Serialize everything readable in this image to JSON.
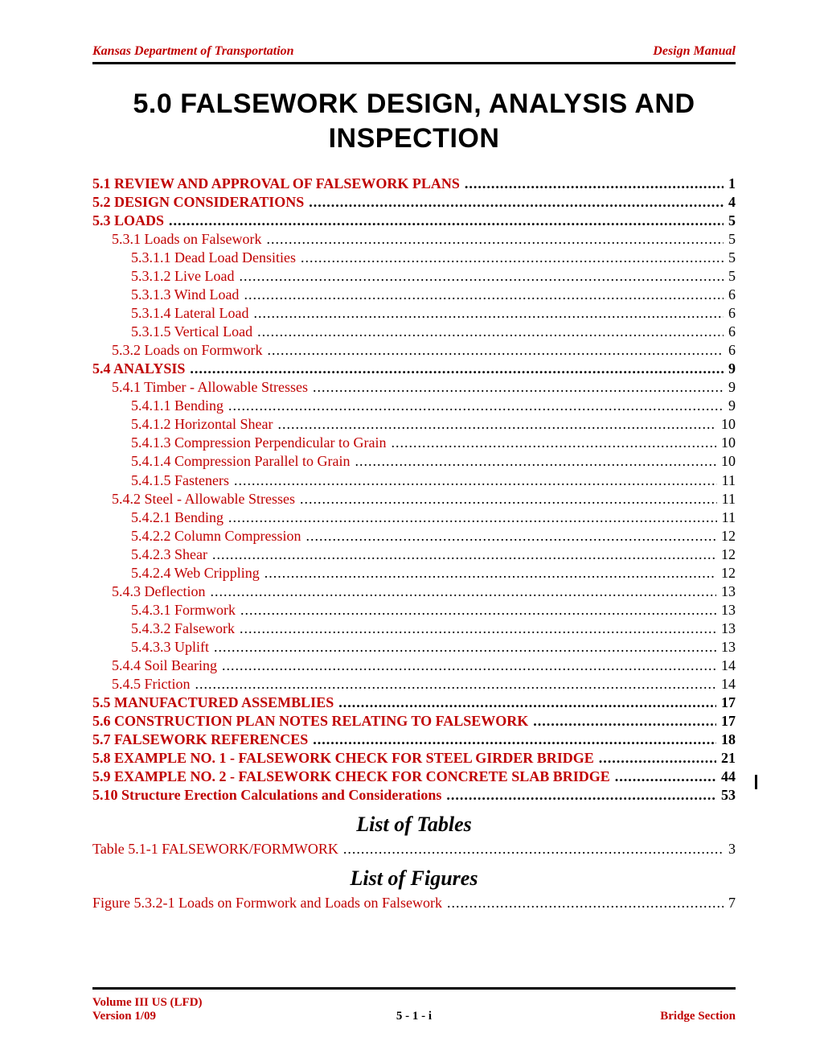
{
  "header": {
    "left": "Kansas Department of Transportation",
    "right": "Design Manual",
    "left_color": "#c00000",
    "right_color": "#c00000"
  },
  "title": "5.0 FALSEWORK DESIGN, ANALYSIS AND INSPECTION",
  "toc": [
    {
      "level": 0,
      "title": "5.1 REVIEW AND APPROVAL OF FALSEWORK PLANS",
      "page": "1"
    },
    {
      "level": 0,
      "title": "5.2 DESIGN CONSIDERATIONS",
      "page": "4"
    },
    {
      "level": 0,
      "title": "5.3 LOADS",
      "page": "5"
    },
    {
      "level": 1,
      "title": "5.3.1 Loads on Falsework",
      "page": "5"
    },
    {
      "level": 2,
      "title": "5.3.1.1 Dead Load Densities",
      "page": "5"
    },
    {
      "level": 2,
      "title": "5.3.1.2 Live Load",
      "page": "5"
    },
    {
      "level": 2,
      "title": "5.3.1.3 Wind Load",
      "page": "6"
    },
    {
      "level": 2,
      "title": "5.3.1.4 Lateral Load",
      "page": "6"
    },
    {
      "level": 2,
      "title": "5.3.1.5 Vertical Load",
      "page": "6"
    },
    {
      "level": 1,
      "title": "5.3.2 Loads on Formwork",
      "page": "6"
    },
    {
      "level": 0,
      "title": "5.4 ANALYSIS",
      "page": "9"
    },
    {
      "level": 1,
      "title": "5.4.1 Timber - Allowable Stresses",
      "page": "9"
    },
    {
      "level": 2,
      "title": "5.4.1.1 Bending",
      "page": "9"
    },
    {
      "level": 2,
      "title": "5.4.1.2 Horizontal Shear",
      "page": "10"
    },
    {
      "level": 2,
      "title": "5.4.1.3 Compression Perpendicular to Grain",
      "page": "10"
    },
    {
      "level": 2,
      "title": "5.4.1.4 Compression Parallel to Grain",
      "page": "10"
    },
    {
      "level": 2,
      "title": "5.4.1.5 Fasteners",
      "page": "11"
    },
    {
      "level": 1,
      "title": "5.4.2 Steel - Allowable Stresses",
      "page": "11"
    },
    {
      "level": 2,
      "title": "5.4.2.1 Bending",
      "page": "11"
    },
    {
      "level": 2,
      "title": "5.4.2.2 Column Compression",
      "page": "12"
    },
    {
      "level": 2,
      "title": "5.4.2.3 Shear",
      "page": "12"
    },
    {
      "level": 2,
      "title": "5.4.2.4 Web Crippling",
      "page": "12"
    },
    {
      "level": 1,
      "title": "5.4.3 Deflection",
      "page": "13"
    },
    {
      "level": 2,
      "title": "5.4.3.1 Formwork",
      "page": "13"
    },
    {
      "level": 2,
      "title": "5.4.3.2 Falsework",
      "page": "13"
    },
    {
      "level": 2,
      "title": "5.4.3.3 Uplift",
      "page": "13"
    },
    {
      "level": 1,
      "title": "5.4.4 Soil Bearing",
      "page": "14"
    },
    {
      "level": 1,
      "title": "5.4.5 Friction",
      "page": "14"
    },
    {
      "level": 0,
      "title": "5.5 MANUFACTURED ASSEMBLIES",
      "page": "17"
    },
    {
      "level": 0,
      "title": "5.6 CONSTRUCTION PLAN NOTES RELATING TO FALSEWORK",
      "page": "17"
    },
    {
      "level": 0,
      "title": "5.7 FALSEWORK REFERENCES",
      "page": "18"
    },
    {
      "level": 0,
      "title": "5.8 EXAMPLE NO. 1 - FALSEWORK CHECK FOR STEEL GIRDER BRIDGE",
      "page": "21"
    },
    {
      "level": 0,
      "title": "5.9 EXAMPLE NO. 2 - FALSEWORK CHECK FOR CONCRETE SLAB BRIDGE",
      "page": "44"
    },
    {
      "level": 0,
      "title": "5.10 Structure Erection Calculations and Considerations",
      "page": "53"
    }
  ],
  "list_of_tables_heading": "List of Tables",
  "list_of_tables": [
    {
      "title": "Table 5.1-1 FALSEWORK/FORMWORK",
      "page": "3"
    }
  ],
  "list_of_figures_heading": "List of Figures",
  "list_of_figures": [
    {
      "title": "Figure 5.3.2-1 Loads on Formwork and Loads on Falsework",
      "page": "7"
    }
  ],
  "footer": {
    "left_line1": "Volume III US (LFD)",
    "left_line2": "Version 1/09",
    "center": "5 - 1 - i",
    "right": "Bridge Section",
    "left_color": "#c00000",
    "right_color": "#c00000"
  },
  "colors": {
    "accent": "#c00000",
    "text": "#000000",
    "rule": "#000000",
    "background": "#ffffff"
  },
  "typography": {
    "body_family": "Times New Roman",
    "title_family": "Arial",
    "title_size_pt": 26,
    "body_size_pt": 14,
    "heading_size_pt": 20
  }
}
